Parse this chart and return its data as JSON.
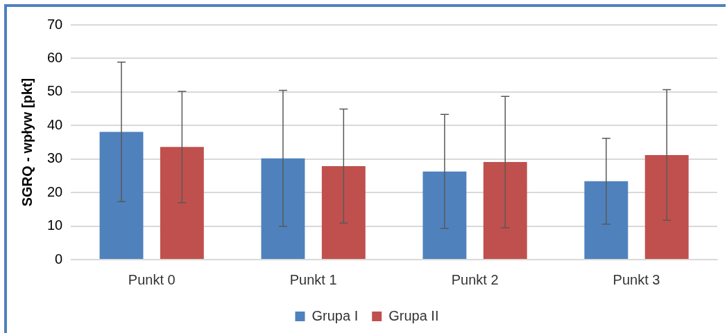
{
  "chart_data": {
    "type": "bar",
    "ylabel": "SGRQ - wpływ [pkt]",
    "categories": [
      "Punkt 0",
      "Punkt 1",
      "Punkt 2",
      "Punkt 3"
    ],
    "series": [
      {
        "name": "Grupa I",
        "color": "#4f81bd",
        "values": [
          38.1,
          30.2,
          26.3,
          23.4
        ],
        "errors": [
          20.8,
          20.3,
          17,
          12.8
        ]
      },
      {
        "name": "Grupa II",
        "color": "#c0504d",
        "values": [
          33.6,
          27.9,
          29.1,
          31.2
        ],
        "errors": [
          16.6,
          17,
          19.6,
          19.5
        ]
      }
    ],
    "ylim": [
      0,
      70
    ],
    "yticks": [
      0,
      10,
      20,
      30,
      40,
      50,
      60,
      70
    ],
    "grid": "y",
    "legend": "bottom"
  }
}
